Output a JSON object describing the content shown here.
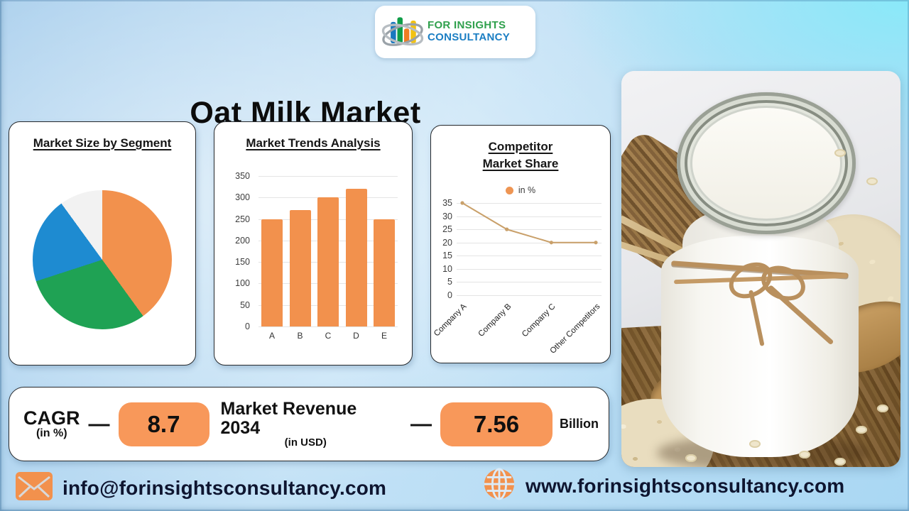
{
  "title": "Oat Milk Market",
  "brand": {
    "line1": "FOR INSIGHTS",
    "line2": "CONSULTANCY",
    "line1_color": "#2FA04C",
    "line2_color": "#1B7EC3"
  },
  "chart_data": [
    {
      "type": "pie",
      "title": "Market Size by Segment",
      "values": [
        40,
        30,
        20,
        10
      ],
      "colors": [
        "#F2914D",
        "#1FA254",
        "#1E8BD1",
        "#F2F2F2"
      ],
      "start_angle_deg": 0,
      "legend_shown": false
    },
    {
      "type": "bar",
      "title": "Market Trends Analysis",
      "categories": [
        "A",
        "B",
        "C",
        "D",
        "E"
      ],
      "values": [
        250,
        270,
        300,
        320,
        250
      ],
      "ylim": [
        0,
        350
      ],
      "ytick_step": 50,
      "bar_color": "#F2914D",
      "grid": true
    },
    {
      "type": "line",
      "title": "Competitor Market Share",
      "title_line1": "Competitor",
      "title_line2": "Market Share",
      "legend": [
        "in %"
      ],
      "legend_position": "top",
      "categories": [
        "Company A",
        "Company B",
        "Company C",
        "Other Competitors"
      ],
      "values": [
        35,
        25,
        20,
        20
      ],
      "ylim": [
        0,
        35
      ],
      "ytick_step": 5,
      "line_color": "#C9A06A",
      "marker_color": "#EE9553",
      "grid": true
    }
  ],
  "stats": {
    "cagr_label": "CAGR",
    "cagr_unit": "(in %)",
    "cagr_value": "8.7",
    "separator": "—",
    "revenue_label": "Market Revenue 2034",
    "revenue_unit": "(in USD)",
    "revenue_value": "7.56",
    "revenue_scale": "Billion",
    "value_box_color": "#F8985A"
  },
  "footer": {
    "email": "info@forinsightsconsultancy.com",
    "website": "www.forinsightsconsultancy.com"
  }
}
